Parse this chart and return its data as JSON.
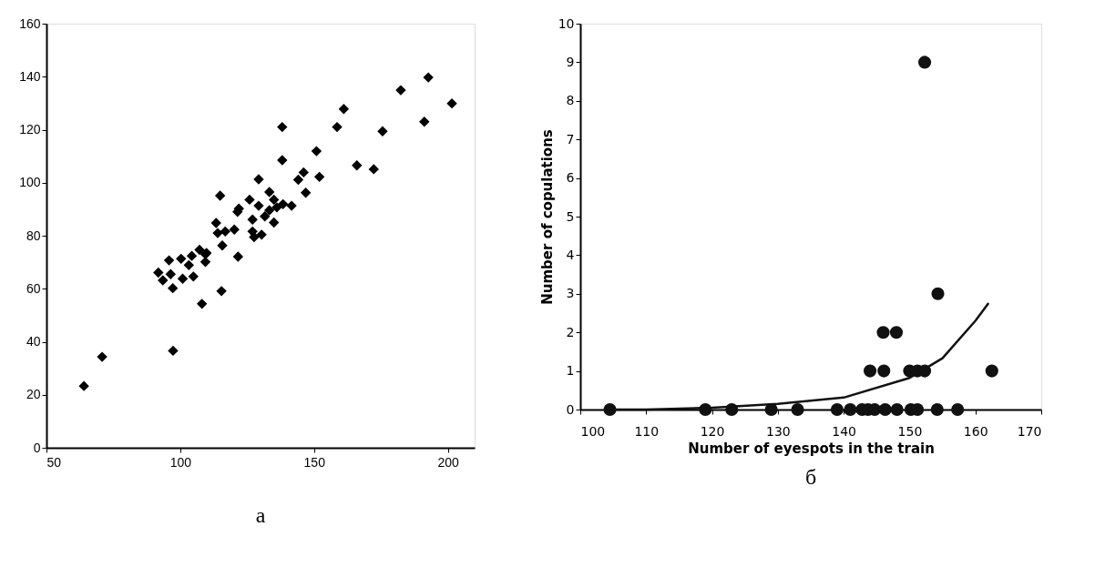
{
  "chart_data": [
    {
      "type": "scatter",
      "marker": "diamond",
      "grid": false,
      "legend": false,
      "xlim": [
        50,
        210
      ],
      "ylim": [
        0,
        160
      ],
      "xticks": [
        50,
        100,
        150,
        200
      ],
      "yticks": [
        0,
        20,
        40,
        60,
        80,
        100,
        120,
        140,
        160
      ],
      "annotations": [
        "а"
      ],
      "series": [
        {
          "color": "#000000",
          "x": [
            64.0,
            70.8,
            97.3,
            108.1,
            115.4,
            97.2,
            121.6,
            115.7,
            113.4,
            114.9,
            129.3,
            138.1,
            138.1,
            158.6,
            161.1,
            182.4,
            192.7,
            201.5,
            191.2,
            175.6,
            150.9,
            166.0,
            172.3,
            152.0,
            144.1,
            146.1,
            146.9,
            141.6,
            133.3,
            125.9,
            121.9,
            121.4,
            129.3,
            135.0,
            136.1,
            127.0,
            131.6,
            135.0,
            127.0,
            130.4,
            127.6,
            133.3,
            120.2,
            116.8,
            114.0,
            109.4,
            109.8,
            107.2,
            104.3,
            100.3,
            95.8,
            91.8,
            93.5,
            96.4,
            104.9,
            100.9,
            109.4,
            103.2,
            138.4
          ],
          "values": [
            23.3,
            34.3,
            36.6,
            54.3,
            59.1,
            60.2,
            72.1,
            76.3,
            84.8,
            95.1,
            101.3,
            108.5,
            121.0,
            121.0,
            127.8,
            134.9,
            139.7,
            129.9,
            123.0,
            119.4,
            111.9,
            106.5,
            105.1,
            102.2,
            101.1,
            103.9,
            96.2,
            91.3,
            96.5,
            93.6,
            90.2,
            89.0,
            91.3,
            93.6,
            90.7,
            86.1,
            87.3,
            85.0,
            81.6,
            80.4,
            79.5,
            89.6,
            82.3,
            81.6,
            81.0,
            70.1,
            73.5,
            74.7,
            72.4,
            71.3,
            70.7,
            66.1,
            63.2,
            65.5,
            64.6,
            63.8,
            73.0,
            68.9,
            91.9
          ]
        }
      ]
    },
    {
      "type": "scatter",
      "grid": false,
      "legend": false,
      "xlabel": "Number of eyespots in the train",
      "ylabel": "Number of copulations",
      "xlim": [
        100,
        170
      ],
      "ylim": [
        0,
        10
      ],
      "xticks": [
        100,
        110,
        120,
        130,
        140,
        150,
        160,
        170
      ],
      "yticks": [
        0,
        1,
        2,
        3,
        4,
        5,
        6,
        7,
        8,
        9,
        10
      ],
      "annotations": [
        "б"
      ],
      "series": [
        {
          "type": "scatter",
          "marker": "circle",
          "color": "#111111",
          "x": [
            104.5,
            119,
            123,
            129,
            133,
            139,
            141,
            142.8,
            143.7,
            144.7,
            146.3,
            148.1,
            150.2,
            151.2,
            154.2,
            157.3,
            144,
            146.1,
            150,
            151.2,
            152.3,
            162.5,
            146,
            148,
            154.3,
            152.3
          ],
          "values": [
            0,
            0,
            0,
            0,
            0,
            0,
            0,
            0,
            0,
            0,
            0,
            0,
            0,
            0,
            0,
            0,
            1,
            1,
            1,
            1,
            1,
            1,
            2,
            2,
            3,
            9
          ]
        },
        {
          "type": "line",
          "color": "#111111",
          "line_style": "solid",
          "x": [
            105,
            110,
            120,
            130,
            140,
            150,
            155,
            160,
            162
          ],
          "values": [
            0,
            0,
            0.05,
            0.15,
            0.31,
            0.82,
            1.33,
            2.3,
            2.76
          ]
        }
      ]
    }
  ]
}
